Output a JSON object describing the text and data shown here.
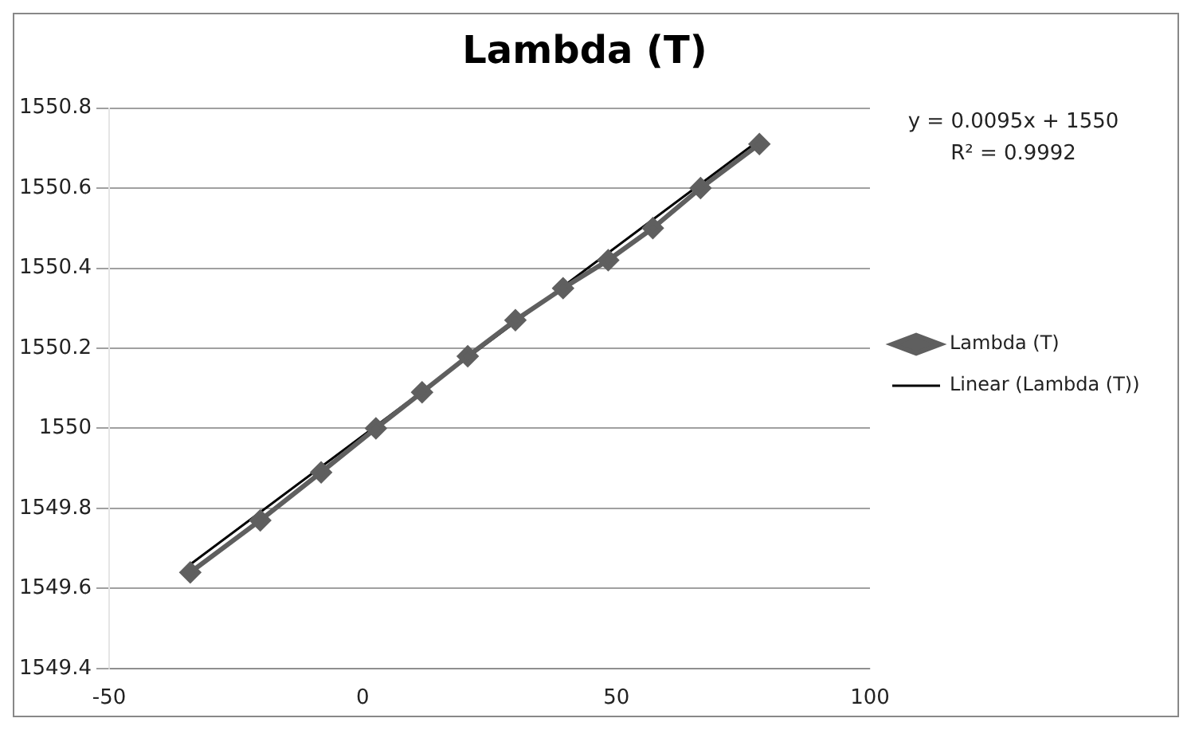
{
  "chart_data": {
    "type": "line",
    "title": "Lambda (T)",
    "annotations": [
      "y = 0.0095x + 1550",
      "R² = 0.9992"
    ],
    "xlim": [
      -50,
      100
    ],
    "xticks": [
      -50,
      0,
      50,
      100
    ],
    "ylim": [
      1549.4,
      1550.8
    ],
    "yticks": [
      1549.4,
      1549.6,
      1549.8,
      1550,
      1550.2,
      1550.4,
      1550.6,
      1550.8
    ],
    "grid": "y",
    "legend": "right",
    "marker": "diamond",
    "series": [
      {
        "name": "Lambda (T)",
        "color": "#5f5f5f",
        "x": [
          -34,
          -20.2,
          -8.2,
          2.6,
          11.7,
          20.7,
          30.1,
          39.5,
          48.4,
          57.2,
          66.6,
          78.2
        ],
        "values": [
          1549.64,
          1549.77,
          1549.89,
          1550,
          1550.09,
          1550.18,
          1550.27,
          1550.35,
          1550.42,
          1550.5,
          1550.6,
          1550.71
        ]
      },
      {
        "name": "Linear (Lambda (T))",
        "marker": "none",
        "color": "#000000",
        "x": [
          -34,
          78.2
        ],
        "values": [
          1549.66,
          1550.72
        ]
      }
    ]
  }
}
